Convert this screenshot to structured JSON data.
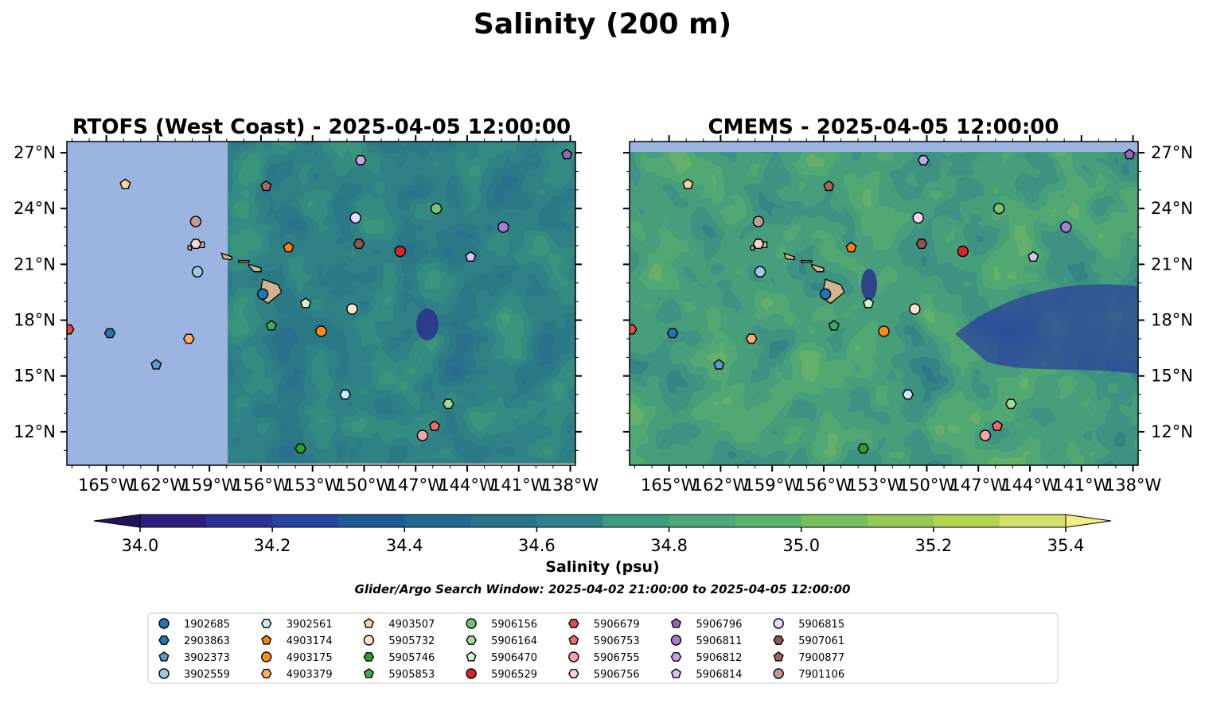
{
  "title": "Salinity (200 m)",
  "colors": {
    "land": "#d2b48c",
    "nodata": "#9bb5e0",
    "colormap": [
      "#23145a",
      "#2a1f7e",
      "#2e2f96",
      "#2644a0",
      "#1e5a98",
      "#1f6a90",
      "#27768b",
      "#2e838b",
      "#358f86",
      "#3c9c80",
      "#4aa879",
      "#5cb46c",
      "#77c05e",
      "#95c955",
      "#b4d451",
      "#d3e06a",
      "#f4ee86"
    ]
  },
  "panels": [
    {
      "title": "RTOFS (West Coast) - 2025-04-05 12:00:00"
    },
    {
      "title": "CMEMS - 2025-04-05 12:00:00"
    }
  ],
  "x_ticks": [
    "165°W",
    "162°W",
    "159°W",
    "156°W",
    "153°W",
    "150°W",
    "147°W",
    "144°W",
    "141°W",
    "138°W"
  ],
  "y_ticks": [
    "27°N",
    "24°N",
    "21°N",
    "18°N",
    "15°N",
    "12°N"
  ],
  "colorbar": {
    "label": "Salinity (psu)",
    "ticks": [
      "34.0",
      "34.2",
      "34.4",
      "34.6",
      "34.8",
      "35.0",
      "35.2",
      "35.4"
    ]
  },
  "search_window": "Glider/Argo Search Window: 2025-04-02 21:00:00 to 2025-04-05 12:00:00",
  "chart_data": {
    "type": "heatmap",
    "variable": "Salinity",
    "units": "psu",
    "depth_m": 200,
    "value_range": [
      34.0,
      35.4
    ],
    "levels": [
      34.0,
      34.1,
      34.2,
      34.3,
      34.4,
      34.5,
      34.6,
      34.7,
      34.8,
      34.9,
      35.0,
      35.1,
      35.2,
      35.3,
      35.4
    ],
    "lon_range": [
      -167.3,
      -137.7
    ],
    "lat_range": [
      10.2,
      27.6
    ],
    "rtofs_data_east_of_lon": -157.9,
    "floats": [
      {
        "id": "1902685",
        "marker": "circle",
        "color": "#1f77b4",
        "lon": -155.9,
        "lat": 19.4
      },
      {
        "id": "2903863",
        "marker": "hexagon",
        "color": "#1f77b4",
        "lon": -164.8,
        "lat": 17.3
      },
      {
        "id": "3902373",
        "marker": "pentagon",
        "color": "#5a9bd5",
        "lon": -162.1,
        "lat": 15.6
      },
      {
        "id": "3902559",
        "marker": "circle",
        "color": "#9ecae1",
        "lon": -159.7,
        "lat": 20.6
      },
      {
        "id": "3902561",
        "marker": "hexagon",
        "color": "#cfe8f8",
        "lon": -151.1,
        "lat": 14.0
      },
      {
        "id": "4903174",
        "marker": "pentagon",
        "color": "#ff7f0e",
        "lon": -154.4,
        "lat": 21.9
      },
      {
        "id": "4903175",
        "marker": "circle",
        "color": "#ff8c1a",
        "lon": -152.5,
        "lat": 17.4
      },
      {
        "id": "4903379",
        "marker": "hexagon",
        "color": "#fdae6b",
        "lon": -160.2,
        "lat": 17.0
      },
      {
        "id": "4903507",
        "marker": "pentagon",
        "color": "#fdd0a2",
        "lon": -163.9,
        "lat": 25.3
      },
      {
        "id": "5905732",
        "marker": "circle",
        "color": "#ffe3c8",
        "lon": -150.7,
        "lat": 18.6
      },
      {
        "id": "5905746",
        "marker": "hexagon",
        "color": "#2ca02c",
        "lon": -153.7,
        "lat": 11.1
      },
      {
        "id": "5905853",
        "marker": "pentagon",
        "color": "#41ab5d",
        "lon": -155.4,
        "lat": 17.7
      },
      {
        "id": "5906156",
        "marker": "circle",
        "color": "#74c476",
        "lon": -145.8,
        "lat": 24.0
      },
      {
        "id": "5906164",
        "marker": "hexagon",
        "color": "#a1d99b",
        "lon": -145.1,
        "lat": 13.5
      },
      {
        "id": "5906470",
        "marker": "pentagon",
        "color": "#d4f5c6",
        "lon": -153.4,
        "lat": 18.9
      },
      {
        "id": "5906529",
        "marker": "circle",
        "color": "#d62728",
        "lon": -147.9,
        "lat": 21.7
      },
      {
        "id": "5906679",
        "marker": "hexagon",
        "color": "#e34a4a",
        "lon": -167.2,
        "lat": 17.5
      },
      {
        "id": "5906753",
        "marker": "pentagon",
        "color": "#f06b6b",
        "lon": -145.9,
        "lat": 12.3
      },
      {
        "id": "5906755",
        "marker": "circle",
        "color": "#f4a6a6",
        "lon": -146.6,
        "lat": 11.8
      },
      {
        "id": "5906756",
        "marker": "hexagon",
        "color": "#fbd3d3",
        "lon": -159.8,
        "lat": 22.1
      },
      {
        "id": "5906796",
        "marker": "pentagon",
        "color": "#9467bd",
        "lon": -138.2,
        "lat": 26.9
      },
      {
        "id": "5906811",
        "marker": "circle",
        "color": "#a87bd4",
        "lon": -141.9,
        "lat": 23.0
      },
      {
        "id": "5906812",
        "marker": "hexagon",
        "color": "#c8a5e8",
        "lon": -150.2,
        "lat": 26.6
      },
      {
        "id": "5906814",
        "marker": "pentagon",
        "color": "#d9c2f2",
        "lon": -143.8,
        "lat": 21.4
      },
      {
        "id": "5906815",
        "marker": "circle",
        "color": "#ead8fa",
        "lon": -150.5,
        "lat": 23.5
      },
      {
        "id": "5907061",
        "marker": "hexagon",
        "color": "#8c564b",
        "lon": -150.3,
        "lat": 22.1
      },
      {
        "id": "7900877",
        "marker": "pentagon",
        "color": "#a0695c",
        "lon": -155.7,
        "lat": 25.2
      },
      {
        "id": "7901106",
        "marker": "circle",
        "color": "#c49c94",
        "lon": -159.8,
        "lat": 23.3
      }
    ]
  }
}
